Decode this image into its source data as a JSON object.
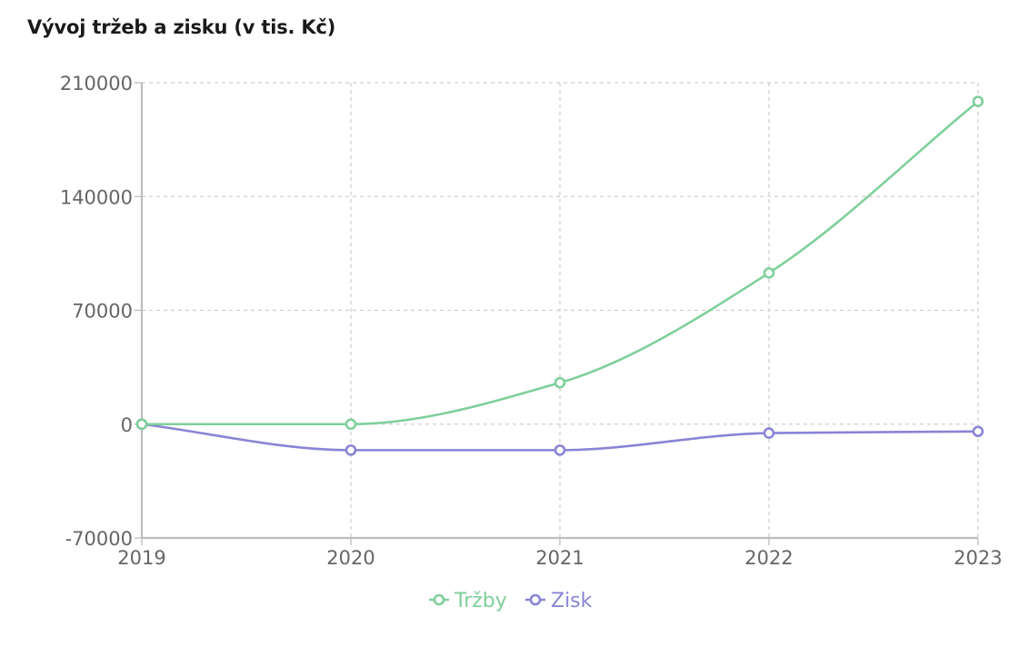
{
  "chart_data": {
    "type": "line",
    "title": "Vývoj tržeb a zisku (v tis. Kč)",
    "x": [
      "2019",
      "2020",
      "2021",
      "2022",
      "2023"
    ],
    "ylim": [
      -70000,
      210000
    ],
    "yticks": [
      -70000,
      0,
      70000,
      140000,
      210000
    ],
    "grid": true,
    "legend": "bottom",
    "series": [
      {
        "name": "Tržby",
        "color": "#7fcf9b",
        "values": [
          0,
          0,
          25500,
          93000,
          198500
        ]
      },
      {
        "name": "Zisk",
        "color": "#8a84d6",
        "values": [
          0,
          -16000,
          -16000,
          -5500,
          -4500
        ]
      }
    ]
  }
}
